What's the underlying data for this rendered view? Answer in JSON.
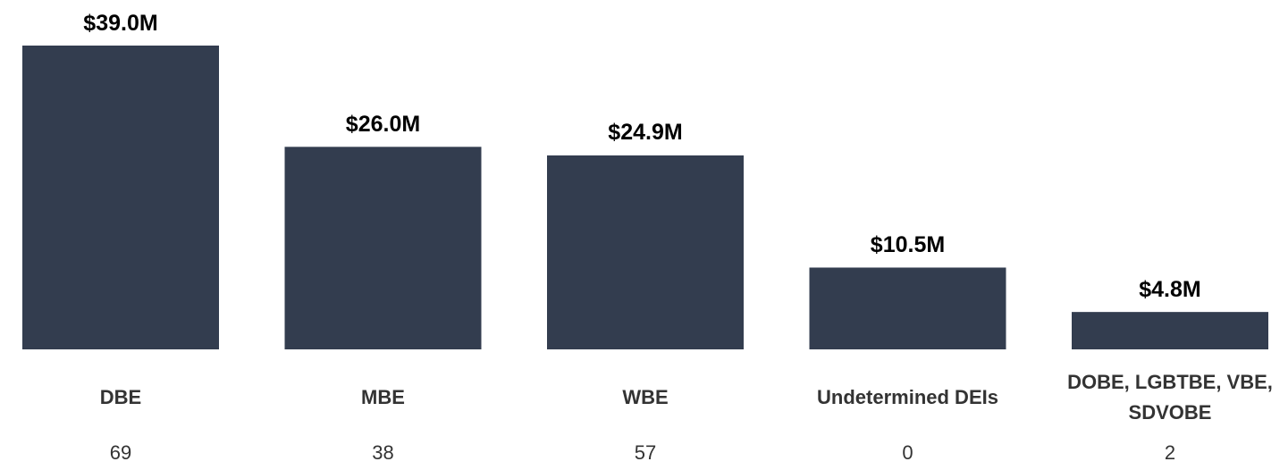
{
  "chart_data": {
    "type": "bar",
    "categories": [
      "DBE",
      "MBE",
      "WBE",
      "Undetermined DEIs",
      "DOBE, LGBTBE, VBE, SDVOBE"
    ],
    "values": [
      39.0,
      26.0,
      24.9,
      10.5,
      4.8
    ],
    "value_labels": [
      "$39.0M",
      "$26.0M",
      "$24.9M",
      "$10.5M",
      "$4.8M"
    ],
    "counts": [
      69,
      38,
      57,
      0,
      2
    ],
    "color": "#333d4f"
  }
}
